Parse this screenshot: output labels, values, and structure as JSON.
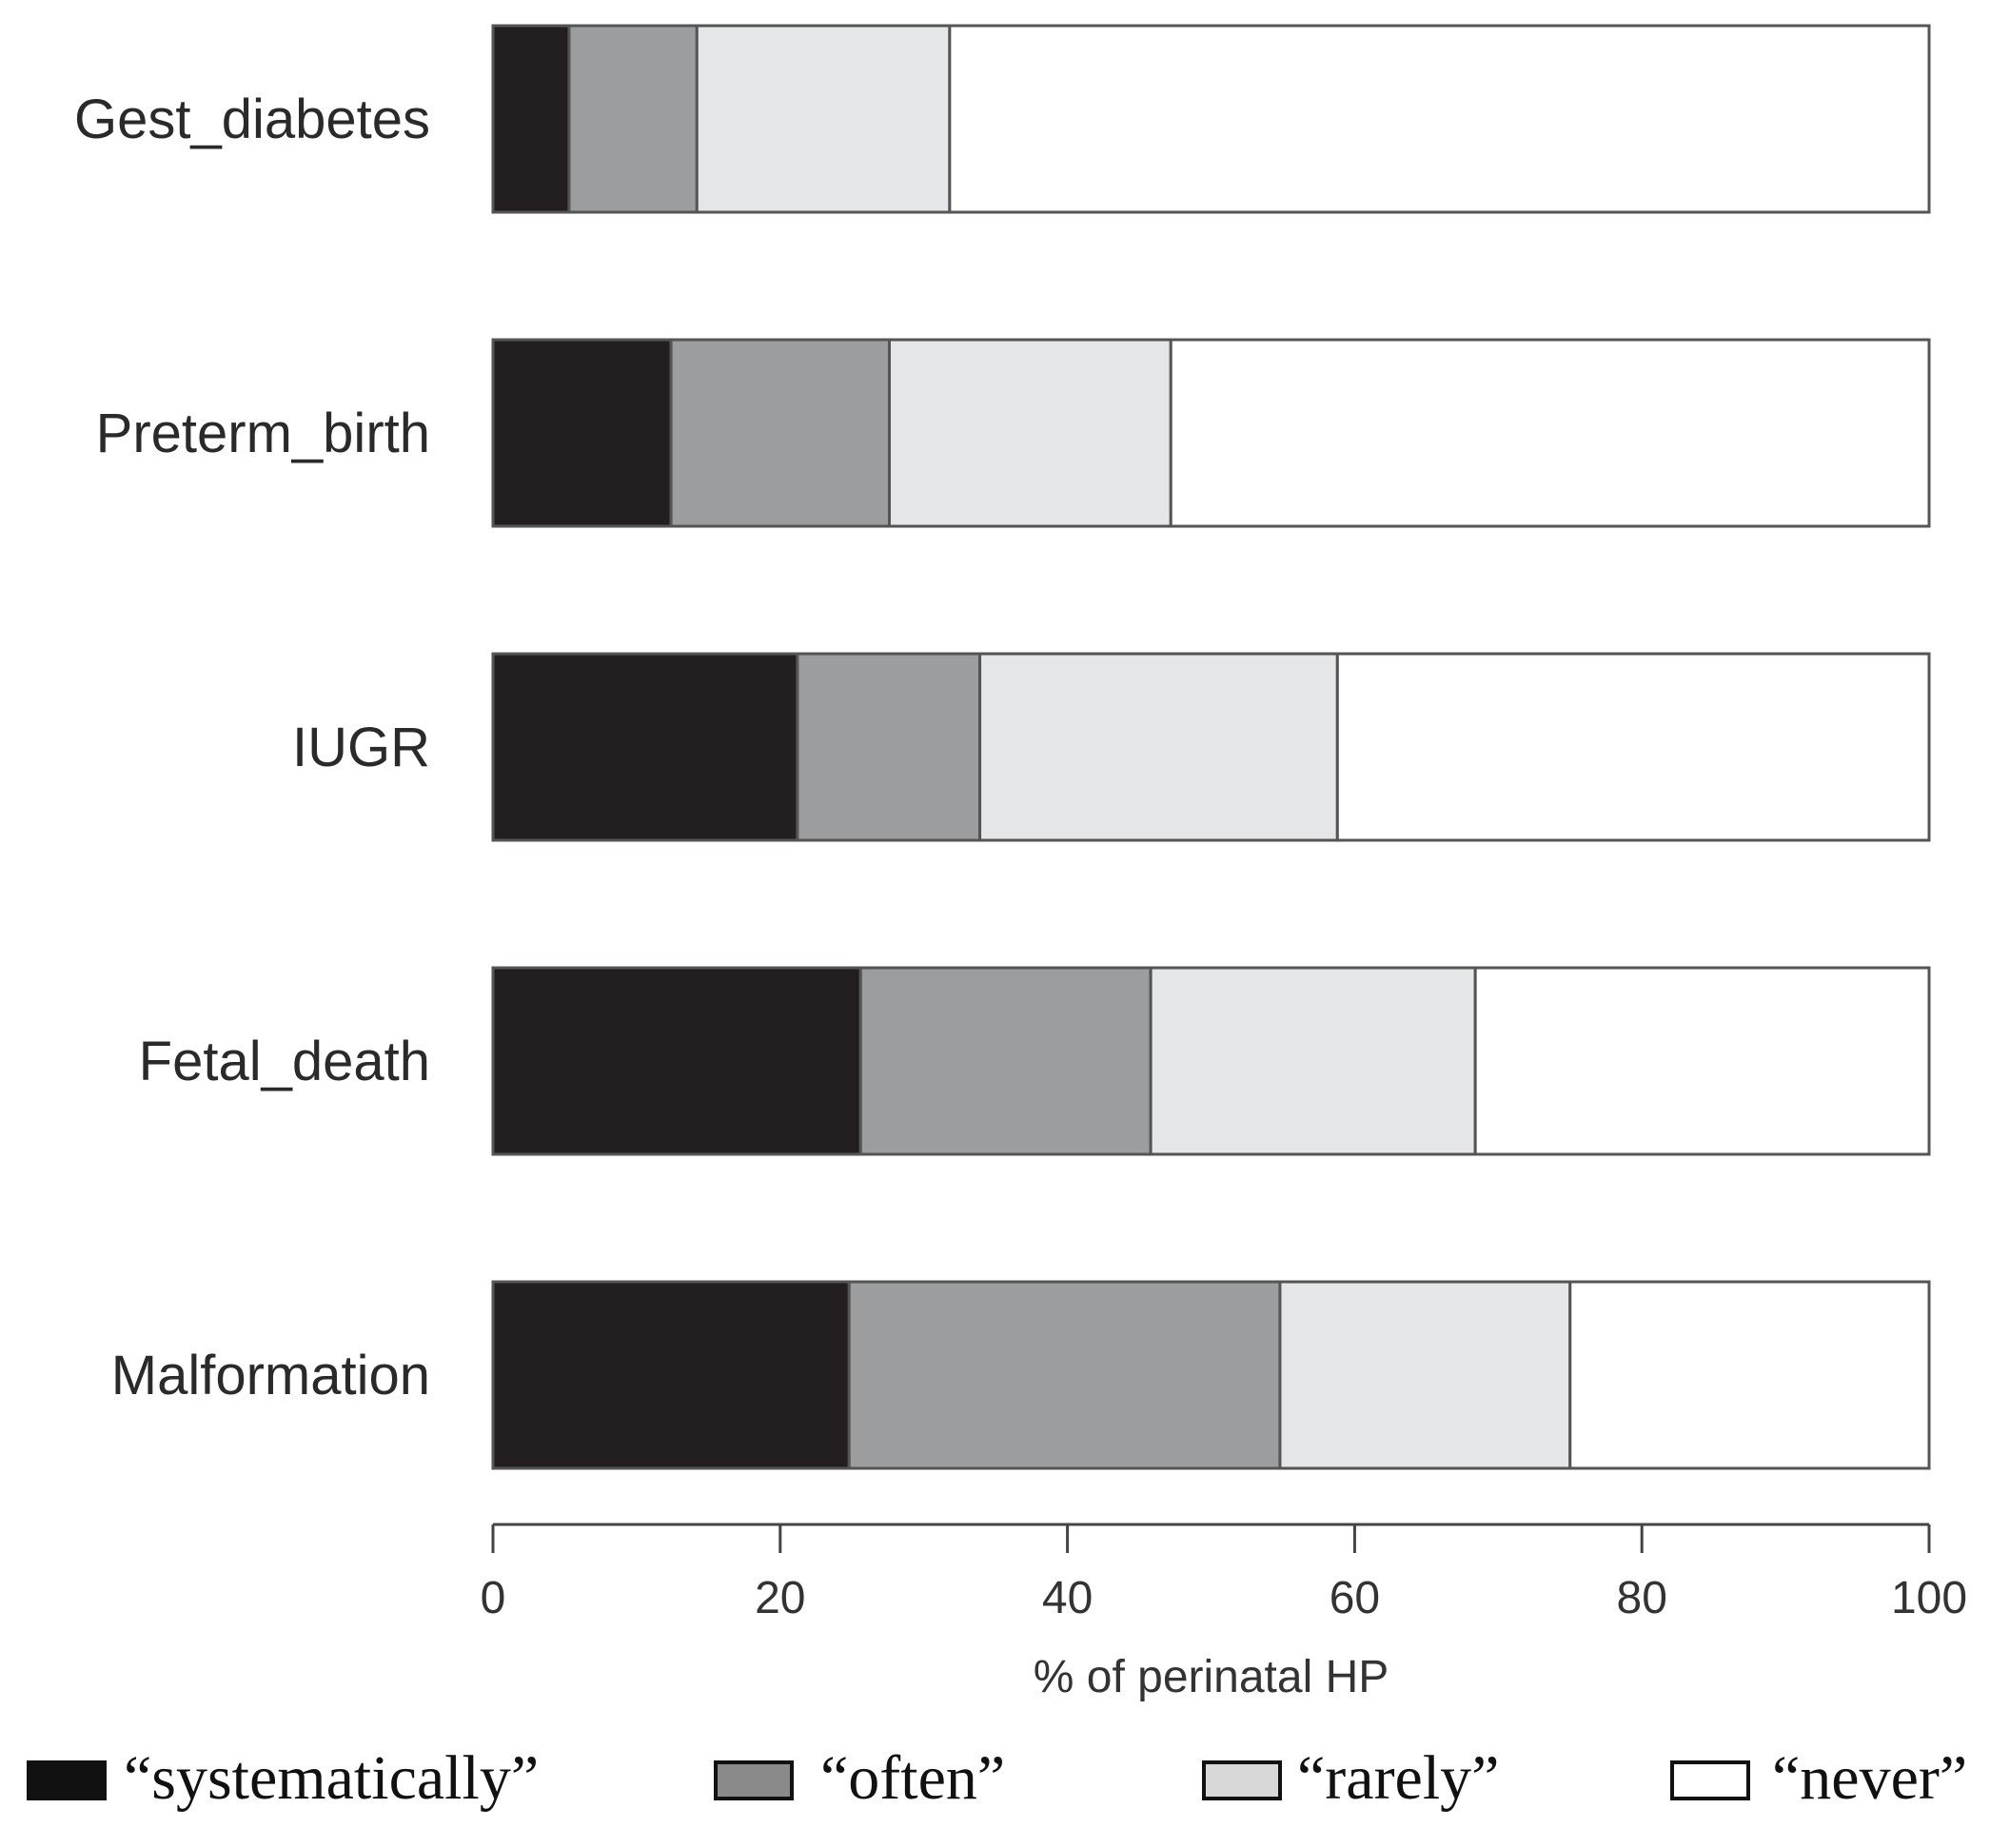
{
  "chart_data": {
    "type": "bar",
    "orientation": "horizontal",
    "stacked": true,
    "categories": [
      "Gest_diabetes",
      "Preterm_birth",
      "IUGR",
      "Fetal_death",
      "Malformation"
    ],
    "series": [
      {
        "name": "“systematically”",
        "color": "#231f20",
        "values": [
          5.3,
          12.4,
          21.2,
          25.6,
          24.8
        ]
      },
      {
        "name": "“often”",
        "color": "#9c9d9f",
        "values": [
          8.9,
          15.2,
          12.7,
          20.2,
          30.0
        ]
      },
      {
        "name": "“rarely”",
        "color": "#e5e6e7",
        "values": [
          17.6,
          19.6,
          24.9,
          22.6,
          20.2
        ]
      },
      {
        "name": "“never”",
        "color": "#ffffff",
        "values": [
          68.2,
          52.8,
          41.2,
          31.6,
          25.0
        ]
      }
    ],
    "xlabel": "% of perinatal HP",
    "xlim": [
      0,
      100
    ],
    "xticks": [
      0,
      20,
      40,
      60,
      80,
      100
    ],
    "xtick_labels": [
      "0",
      "20",
      "40",
      "60",
      "80",
      "100"
    ],
    "legend_position": "bottom",
    "grid": false
  }
}
